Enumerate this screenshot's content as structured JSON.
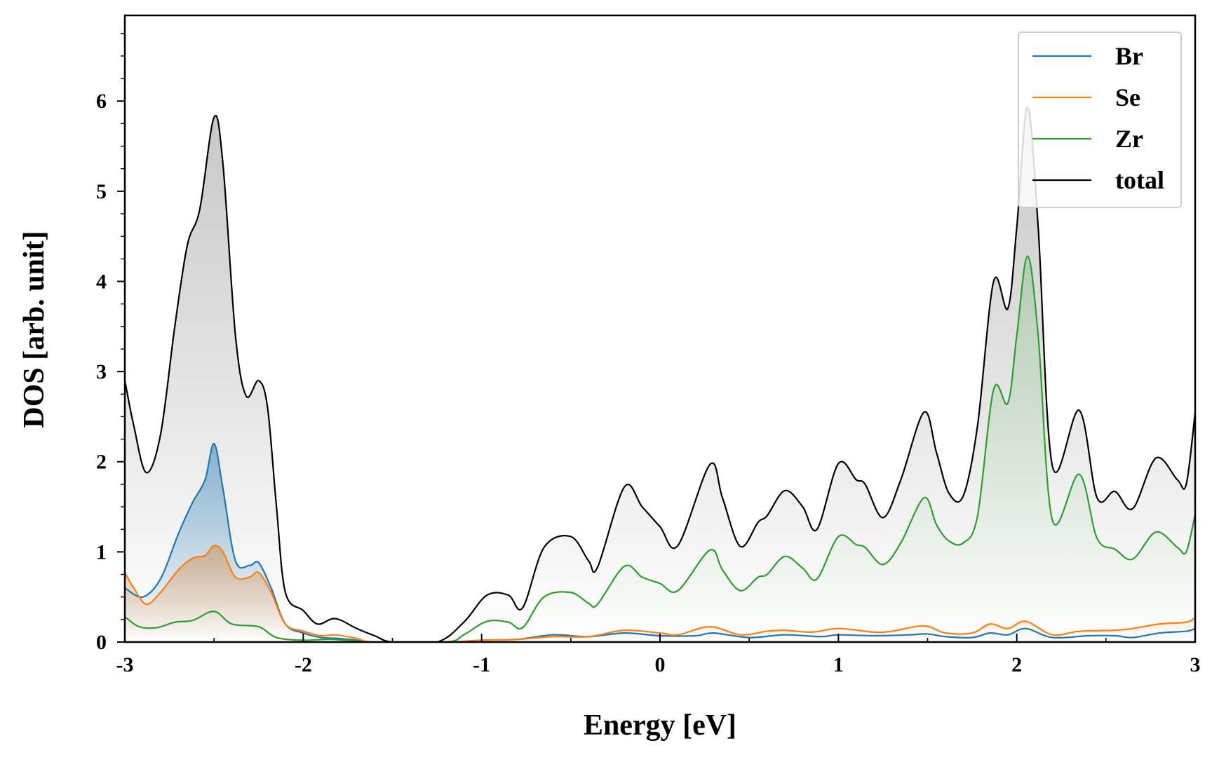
{
  "chart_data": {
    "type": "line",
    "title": "",
    "xlabel": "Energy [eV]",
    "ylabel": "DOS [arb. unit]",
    "xlim": [
      -3,
      3
    ],
    "ylim": [
      0,
      6.95
    ],
    "xticks": [
      -3,
      -2,
      -1,
      0,
      1,
      2,
      3
    ],
    "xtick_labels": [
      "-3",
      "-2",
      "-1",
      "0",
      "1",
      "2",
      "3"
    ],
    "yticks": [
      0,
      1,
      2,
      3,
      4,
      5,
      6
    ],
    "ytick_labels": [
      "0",
      "1",
      "2",
      "3",
      "4",
      "5",
      "6"
    ],
    "legend_position": "top-right",
    "series": [
      {
        "name": "Br",
        "color": "#1f77b4",
        "fill": true,
        "points": [
          [
            -3,
            0.6
          ],
          [
            -2.9,
            0.5
          ],
          [
            -2.8,
            0.7
          ],
          [
            -2.7,
            1.2
          ],
          [
            -2.62,
            1.55
          ],
          [
            -2.55,
            1.8
          ],
          [
            -2.5,
            2.2
          ],
          [
            -2.45,
            1.7
          ],
          [
            -2.38,
            0.9
          ],
          [
            -2.3,
            0.85
          ],
          [
            -2.25,
            0.88
          ],
          [
            -2.18,
            0.6
          ],
          [
            -2.1,
            0.2
          ],
          [
            -2.0,
            0.1
          ],
          [
            -1.9,
            0.05
          ],
          [
            -1.8,
            0.04
          ],
          [
            -1.7,
            0.02
          ],
          [
            -1.6,
            0.0
          ],
          [
            -1.2,
            0.0
          ],
          [
            -1.0,
            0.02
          ],
          [
            -0.8,
            0.03
          ],
          [
            -0.6,
            0.08
          ],
          [
            -0.4,
            0.06
          ],
          [
            -0.2,
            0.1
          ],
          [
            0,
            0.07
          ],
          [
            0.2,
            0.07
          ],
          [
            0.3,
            0.1
          ],
          [
            0.5,
            0.05
          ],
          [
            0.7,
            0.08
          ],
          [
            0.9,
            0.06
          ],
          [
            1.0,
            0.08
          ],
          [
            1.2,
            0.07
          ],
          [
            1.4,
            0.08
          ],
          [
            1.5,
            0.09
          ],
          [
            1.6,
            0.06
          ],
          [
            1.75,
            0.05
          ],
          [
            1.85,
            0.1
          ],
          [
            1.95,
            0.08
          ],
          [
            2.05,
            0.15
          ],
          [
            2.2,
            0.05
          ],
          [
            2.4,
            0.07
          ],
          [
            2.55,
            0.07
          ],
          [
            2.65,
            0.05
          ],
          [
            2.8,
            0.1
          ],
          [
            2.95,
            0.12
          ],
          [
            3,
            0.15
          ]
        ]
      },
      {
        "name": "Se",
        "color": "#ff7f0e",
        "fill": true,
        "points": [
          [
            -3,
            0.77
          ],
          [
            -2.95,
            0.6
          ],
          [
            -2.88,
            0.42
          ],
          [
            -2.8,
            0.55
          ],
          [
            -2.7,
            0.8
          ],
          [
            -2.62,
            0.93
          ],
          [
            -2.55,
            0.96
          ],
          [
            -2.5,
            1.07
          ],
          [
            -2.45,
            1.0
          ],
          [
            -2.38,
            0.72
          ],
          [
            -2.3,
            0.72
          ],
          [
            -2.25,
            0.77
          ],
          [
            -2.18,
            0.55
          ],
          [
            -2.1,
            0.2
          ],
          [
            -2.0,
            0.12
          ],
          [
            -1.9,
            0.07
          ],
          [
            -1.82,
            0.08
          ],
          [
            -1.7,
            0.04
          ],
          [
            -1.6,
            0.0
          ],
          [
            -1.2,
            0.0
          ],
          [
            -1.0,
            0.02
          ],
          [
            -0.8,
            0.03
          ],
          [
            -0.6,
            0.06
          ],
          [
            -0.4,
            0.06
          ],
          [
            -0.2,
            0.13
          ],
          [
            0,
            0.1
          ],
          [
            0.1,
            0.08
          ],
          [
            0.28,
            0.17
          ],
          [
            0.45,
            0.08
          ],
          [
            0.6,
            0.12
          ],
          [
            0.7,
            0.13
          ],
          [
            0.85,
            0.11
          ],
          [
            1.0,
            0.15
          ],
          [
            1.2,
            0.11
          ],
          [
            1.3,
            0.12
          ],
          [
            1.48,
            0.18
          ],
          [
            1.6,
            0.1
          ],
          [
            1.75,
            0.1
          ],
          [
            1.85,
            0.2
          ],
          [
            1.95,
            0.15
          ],
          [
            2.05,
            0.23
          ],
          [
            2.2,
            0.08
          ],
          [
            2.35,
            0.12
          ],
          [
            2.55,
            0.13
          ],
          [
            2.65,
            0.15
          ],
          [
            2.8,
            0.2
          ],
          [
            2.95,
            0.22
          ],
          [
            3,
            0.27
          ]
        ]
      },
      {
        "name": "Zr",
        "color": "#2ca02c",
        "fill": true,
        "points": [
          [
            -3,
            0.28
          ],
          [
            -2.92,
            0.17
          ],
          [
            -2.82,
            0.16
          ],
          [
            -2.72,
            0.22
          ],
          [
            -2.62,
            0.24
          ],
          [
            -2.5,
            0.34
          ],
          [
            -2.4,
            0.2
          ],
          [
            -2.25,
            0.17
          ],
          [
            -2.15,
            0.05
          ],
          [
            -2.0,
            0.02
          ],
          [
            -1.85,
            0.03
          ],
          [
            -1.7,
            0.01
          ],
          [
            -1.6,
            0.0
          ],
          [
            -1.2,
            0.0
          ],
          [
            -1.1,
            0.08
          ],
          [
            -0.97,
            0.23
          ],
          [
            -0.85,
            0.22
          ],
          [
            -0.77,
            0.16
          ],
          [
            -0.65,
            0.5
          ],
          [
            -0.5,
            0.55
          ],
          [
            -0.4,
            0.43
          ],
          [
            -0.35,
            0.42
          ],
          [
            -0.2,
            0.84
          ],
          [
            -0.1,
            0.72
          ],
          [
            0,
            0.65
          ],
          [
            0.1,
            0.57
          ],
          [
            0.28,
            1.02
          ],
          [
            0.35,
            0.8
          ],
          [
            0.45,
            0.57
          ],
          [
            0.55,
            0.72
          ],
          [
            0.6,
            0.75
          ],
          [
            0.7,
            0.95
          ],
          [
            0.8,
            0.82
          ],
          [
            0.88,
            0.7
          ],
          [
            1.0,
            1.17
          ],
          [
            1.1,
            1.08
          ],
          [
            1.15,
            1.05
          ],
          [
            1.25,
            0.86
          ],
          [
            1.35,
            1.1
          ],
          [
            1.48,
            1.6
          ],
          [
            1.55,
            1.3
          ],
          [
            1.62,
            1.12
          ],
          [
            1.7,
            1.1
          ],
          [
            1.78,
            1.4
          ],
          [
            1.87,
            2.8
          ],
          [
            1.95,
            2.65
          ],
          [
            2.0,
            3.4
          ],
          [
            2.06,
            4.28
          ],
          [
            2.12,
            3.4
          ],
          [
            2.2,
            1.35
          ],
          [
            2.35,
            1.86
          ],
          [
            2.45,
            1.15
          ],
          [
            2.55,
            1.03
          ],
          [
            2.65,
            0.92
          ],
          [
            2.78,
            1.22
          ],
          [
            2.9,
            1.05
          ],
          [
            2.95,
            1.0
          ],
          [
            3,
            1.42
          ]
        ]
      },
      {
        "name": "total",
        "color": "#000000",
        "fill": true,
        "points": [
          [
            -3,
            2.9
          ],
          [
            -2.95,
            2.4
          ],
          [
            -2.88,
            1.88
          ],
          [
            -2.8,
            2.3
          ],
          [
            -2.72,
            3.5
          ],
          [
            -2.65,
            4.4
          ],
          [
            -2.58,
            4.8
          ],
          [
            -2.5,
            5.82
          ],
          [
            -2.45,
            5.3
          ],
          [
            -2.38,
            3.4
          ],
          [
            -2.32,
            2.73
          ],
          [
            -2.25,
            2.9
          ],
          [
            -2.2,
            2.6
          ],
          [
            -2.15,
            1.5
          ],
          [
            -2.1,
            0.55
          ],
          [
            -2.0,
            0.35
          ],
          [
            -1.92,
            0.2
          ],
          [
            -1.82,
            0.26
          ],
          [
            -1.7,
            0.15
          ],
          [
            -1.6,
            0.07
          ],
          [
            -1.5,
            0.0
          ],
          [
            -1.25,
            0.0
          ],
          [
            -1.1,
            0.22
          ],
          [
            -0.97,
            0.52
          ],
          [
            -0.85,
            0.52
          ],
          [
            -0.77,
            0.38
          ],
          [
            -0.65,
            1.05
          ],
          [
            -0.5,
            1.17
          ],
          [
            -0.4,
            0.9
          ],
          [
            -0.35,
            0.83
          ],
          [
            -0.2,
            1.72
          ],
          [
            -0.1,
            1.5
          ],
          [
            0,
            1.28
          ],
          [
            0.1,
            1.07
          ],
          [
            0.28,
            1.97
          ],
          [
            0.35,
            1.6
          ],
          [
            0.45,
            1.06
          ],
          [
            0.55,
            1.33
          ],
          [
            0.6,
            1.4
          ],
          [
            0.7,
            1.68
          ],
          [
            0.8,
            1.5
          ],
          [
            0.88,
            1.25
          ],
          [
            1.0,
            1.98
          ],
          [
            1.1,
            1.8
          ],
          [
            1.15,
            1.75
          ],
          [
            1.25,
            1.38
          ],
          [
            1.35,
            1.8
          ],
          [
            1.48,
            2.55
          ],
          [
            1.55,
            2.1
          ],
          [
            1.62,
            1.65
          ],
          [
            1.7,
            1.62
          ],
          [
            1.78,
            2.4
          ],
          [
            1.87,
            4.0
          ],
          [
            1.95,
            3.7
          ],
          [
            2.0,
            4.6
          ],
          [
            2.06,
            5.93
          ],
          [
            2.12,
            4.6
          ],
          [
            2.2,
            1.95
          ],
          [
            2.35,
            2.57
          ],
          [
            2.45,
            1.6
          ],
          [
            2.55,
            1.67
          ],
          [
            2.65,
            1.48
          ],
          [
            2.78,
            2.04
          ],
          [
            2.9,
            1.8
          ],
          [
            2.95,
            1.75
          ],
          [
            3,
            2.55
          ]
        ]
      }
    ]
  }
}
